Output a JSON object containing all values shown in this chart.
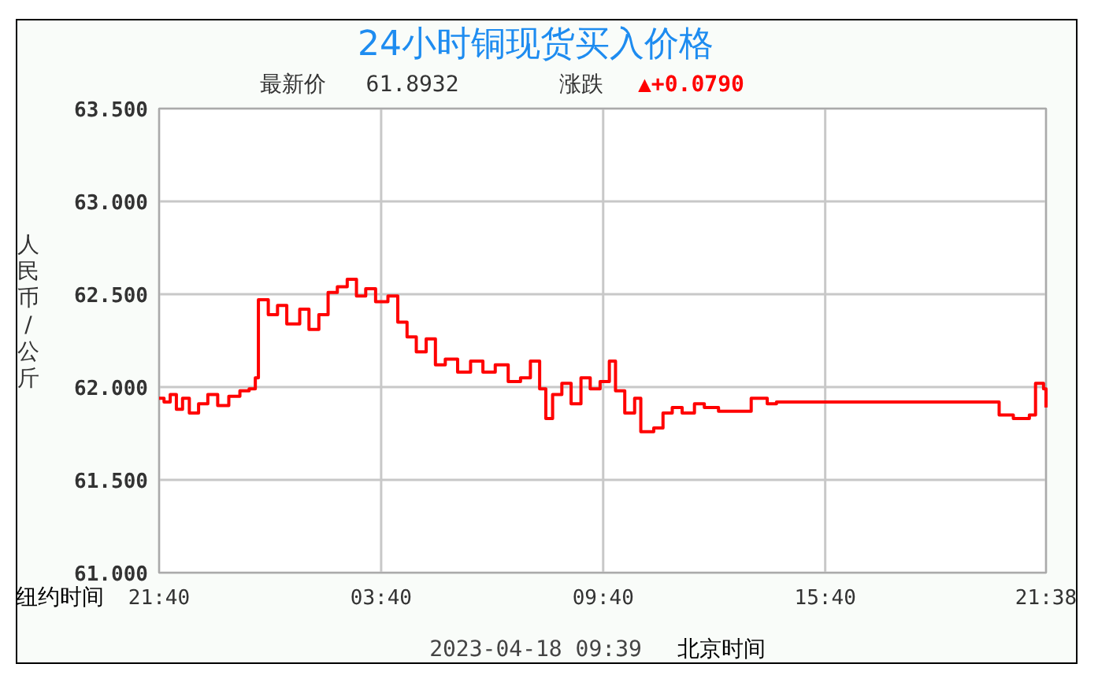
{
  "chart_data": {
    "type": "step",
    "title": "24小时铜现货买入价格",
    "subtitle": "最新价   61.8932",
    "ylabel": "人民币/公斤",
    "annotations": [
      "涨跌",
      "▲+0.0790",
      "纽约时间",
      "2023-04-18 09:39",
      "北京时间"
    ],
    "xlim": [
      "2023-04-16T21:40",
      "2023-04-17T21:38"
    ],
    "xticks": [
      {
        "value": "2023-04-16T21:40",
        "label": "21:40"
      },
      {
        "value": "2023-04-17T03:40",
        "label": "03:40"
      },
      {
        "value": "2023-04-17T09:40",
        "label": "09:40"
      },
      {
        "value": "2023-04-17T15:40",
        "label": "15:40"
      },
      {
        "value": "2023-04-17T21:38",
        "label": "21:38"
      }
    ],
    "ylim": [
      61.0,
      63.5
    ],
    "yticks": [
      {
        "value": 61.0,
        "label": "61.000"
      },
      {
        "value": 61.5,
        "label": "61.500"
      },
      {
        "value": 62.0,
        "label": "62.000"
      },
      {
        "value": 62.5,
        "label": "62.500"
      },
      {
        "value": 63.0,
        "label": "63.000"
      },
      {
        "value": 63.5,
        "label": "63.500"
      }
    ],
    "grid": true,
    "series": [
      {
        "color": "#ff0000",
        "x": [
          "2023-04-16T21:40",
          "2023-04-16T21:48",
          "2023-04-16T21:58",
          "2023-04-16T22:08",
          "2023-04-16T22:18",
          "2023-04-16T22:29",
          "2023-04-16T22:44",
          "2023-04-16T22:59",
          "2023-04-16T23:15",
          "2023-04-16T23:33",
          "2023-04-16T23:51",
          "2023-04-17T00:06",
          "2023-04-17T00:16",
          "2023-04-17T00:21",
          "2023-04-17T00:37",
          "2023-04-17T00:52",
          "2023-04-17T01:07",
          "2023-04-17T01:28",
          "2023-04-17T01:43",
          "2023-04-17T01:59",
          "2023-04-17T02:14",
          "2023-04-17T02:29",
          "2023-04-17T02:45",
          "2023-04-17T03:00",
          "2023-04-17T03:15",
          "2023-04-17T03:31",
          "2023-04-17T03:51",
          "2023-04-17T04:07",
          "2023-04-17T04:22",
          "2023-04-17T04:37",
          "2023-04-17T04:53",
          "2023-04-17T05:08",
          "2023-04-17T05:24",
          "2023-04-17T05:44",
          "2023-04-17T06:05",
          "2023-04-17T06:25",
          "2023-04-17T06:45",
          "2023-04-17T07:06",
          "2023-04-17T07:26",
          "2023-04-17T07:42",
          "2023-04-17T07:57",
          "2023-04-17T08:07",
          "2023-04-17T08:18",
          "2023-04-17T08:33",
          "2023-04-17T08:48",
          "2023-04-17T09:04",
          "2023-04-17T09:19",
          "2023-04-17T09:35",
          "2023-04-17T09:50",
          "2023-04-17T10:00",
          "2023-04-17T10:15",
          "2023-04-17T10:31",
          "2023-04-17T10:41",
          "2023-04-17T11:02",
          "2023-04-17T11:17",
          "2023-04-17T11:32",
          "2023-04-17T11:48",
          "2023-04-17T12:08",
          "2023-04-17T12:24",
          "2023-04-17T12:47",
          "2023-04-17T13:20",
          "2023-04-17T13:40",
          "2023-04-17T14:06",
          "2023-04-17T14:21",
          "2023-04-17T15:33",
          "2023-04-17T17:15",
          "2023-04-17T20:20",
          "2023-04-17T20:22",
          "2023-04-17T20:45",
          "2023-04-17T21:11",
          "2023-04-17T21:21",
          "2023-04-17T21:34",
          "2023-04-17T21:38"
        ],
        "values": [
          61.94,
          61.92,
          61.96,
          61.88,
          61.94,
          61.86,
          61.91,
          61.96,
          61.9,
          61.95,
          61.98,
          61.99,
          62.05,
          62.47,
          62.39,
          62.44,
          62.34,
          62.42,
          62.31,
          62.39,
          62.51,
          62.54,
          62.58,
          62.49,
          62.53,
          62.46,
          62.49,
          62.35,
          62.27,
          62.19,
          62.26,
          62.12,
          62.15,
          62.08,
          62.14,
          62.08,
          62.12,
          62.03,
          62.05,
          62.14,
          61.99,
          61.83,
          61.96,
          62.02,
          61.91,
          62.05,
          61.99,
          62.03,
          62.14,
          61.98,
          61.86,
          61.94,
          61.76,
          61.78,
          61.86,
          61.89,
          61.86,
          61.91,
          61.89,
          61.87,
          61.87,
          61.94,
          61.91,
          61.92,
          61.92,
          61.92,
          61.92,
          61.85,
          61.83,
          61.85,
          62.02,
          61.99,
          61.89
        ]
      }
    ]
  }
}
